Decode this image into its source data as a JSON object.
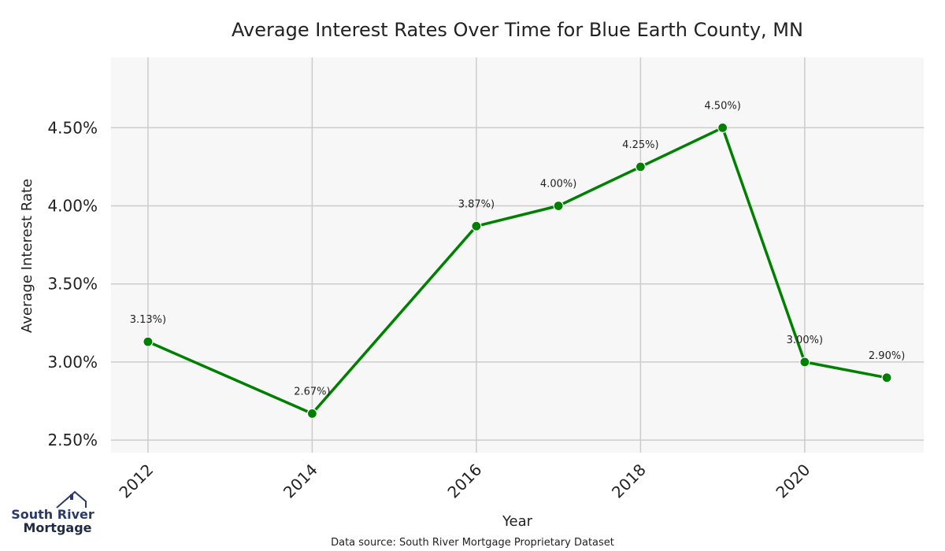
{
  "chart_data": {
    "type": "line",
    "title": "Average Interest Rates Over Time for Blue Earth County, MN",
    "xlabel": "Year",
    "ylabel": "Average Interest Rate",
    "x": [
      2012,
      2014,
      2016,
      2017,
      2018,
      2019,
      2020,
      2021
    ],
    "series": [
      {
        "values": [
          3.13,
          2.67,
          3.87,
          4.0,
          4.25,
          4.5,
          3.0,
          2.9
        ],
        "data_labels": [
          "3.13%)",
          "2.67%)",
          "3.87%)",
          "4.00%)",
          "4.25%)",
          "4.50%)",
          "3.00%)",
          "2.90%)"
        ],
        "color": "#008000"
      }
    ],
    "x_ticks": [
      "2012",
      "2014",
      "2016",
      "2018",
      "2020"
    ],
    "y_ticks": [
      "2.50%",
      "3.00%",
      "3.50%",
      "4.00%",
      "4.50%"
    ],
    "xlim": [
      2011.55,
      2021.45
    ],
    "ylim": [
      2.42,
      4.95
    ],
    "grid": true,
    "background_color": "#f7f7f7",
    "grid_color": "#cccccc"
  },
  "footer": {
    "source": "Data source: South River Mortgage Proprietary Dataset"
  },
  "logo": {
    "line1": "South River",
    "line2": "Mortgage",
    "color_primary": "#2b3a67",
    "color_secondary": "#1f2a44"
  }
}
